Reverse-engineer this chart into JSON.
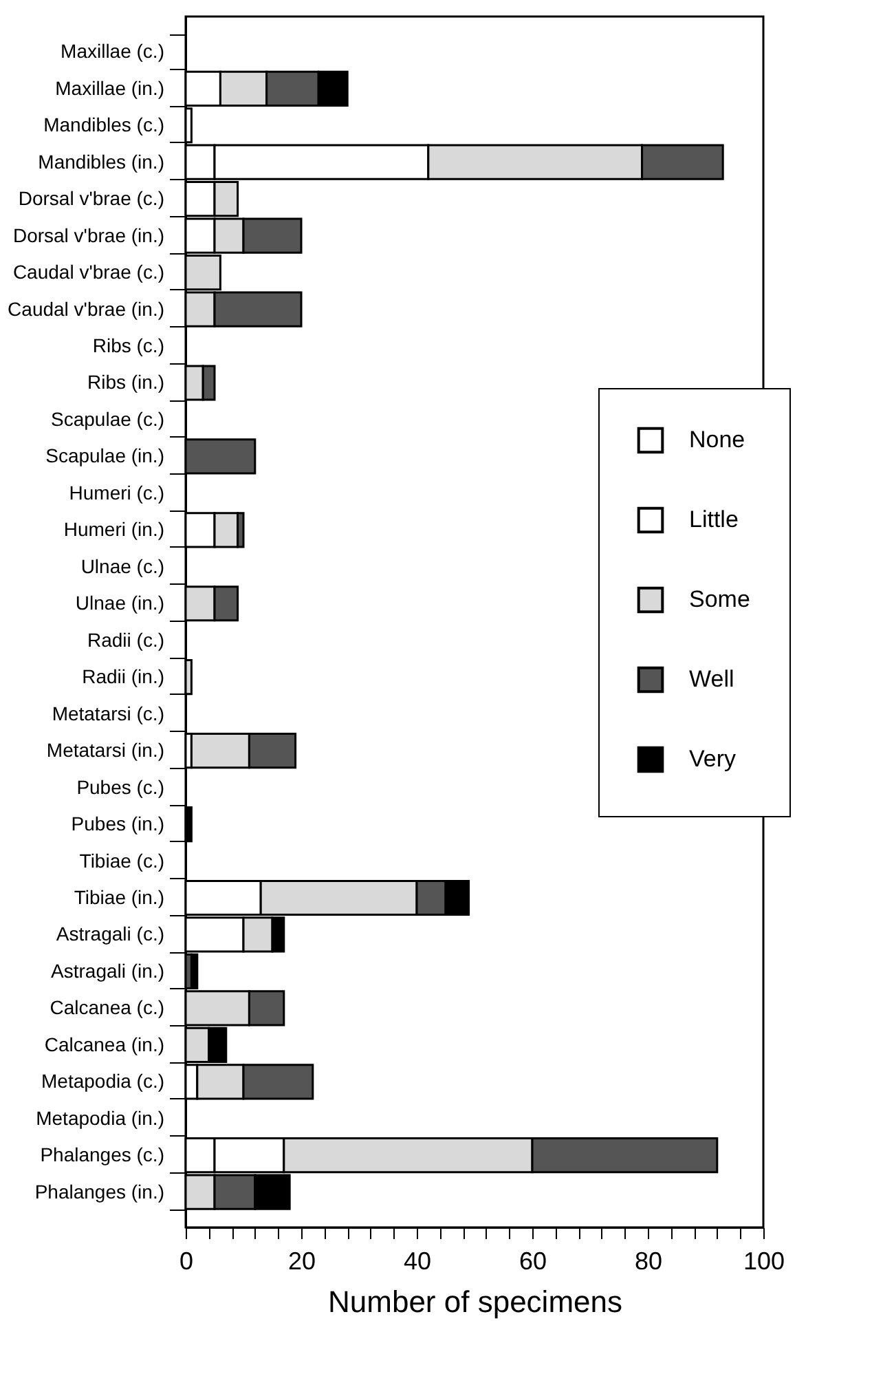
{
  "chart_data": {
    "type": "bar",
    "orientation": "horizontal",
    "stacked": true,
    "xlabel": "Number of specimens",
    "categories": [
      "Maxillae (c.)",
      "Maxillae (in.)",
      "Mandibles (c.)",
      "Mandibles (in.)",
      "Dorsal v'brae (c.)",
      "Dorsal v'brae (in.)",
      "Caudal v'brae (c.)",
      "Caudal v'brae (in.)",
      "Ribs (c.)",
      "Ribs (in.)",
      "Scapulae (c.)",
      "Scapulae (in.)",
      "Humeri (c.)",
      "Humeri (in.)",
      "Ulnae (c.)",
      "Ulnae (in.)",
      "Radii (c.)",
      "Radii (in.)",
      "Metatarsi (c.)",
      "Metatarsi (in.)",
      "Pubes (c.)",
      "Pubes (in.)",
      "Tibiae (c.)",
      "Tibiae (in.)",
      "Astragali (c.)",
      "Astragali (in.)",
      "Calcanea (c.)",
      "Calcanea (in.)",
      "Metapodia (c.)",
      "Metapodia (in.)",
      "Phalanges (c.)",
      "Phalanges (in.)"
    ],
    "series": [
      {
        "name": "None",
        "color": "#ffffff",
        "values": [
          null,
          6,
          1,
          5,
          5,
          5,
          null,
          null,
          null,
          null,
          null,
          null,
          null,
          5,
          null,
          null,
          null,
          null,
          null,
          1,
          null,
          null,
          null,
          13,
          10,
          null,
          null,
          null,
          2,
          null,
          5,
          null
        ]
      },
      {
        "name": "Little",
        "color": "#ffffff",
        "values": [
          null,
          null,
          null,
          37,
          null,
          null,
          null,
          null,
          null,
          null,
          null,
          null,
          null,
          null,
          null,
          null,
          null,
          null,
          null,
          null,
          null,
          null,
          null,
          null,
          null,
          null,
          null,
          null,
          null,
          null,
          12,
          null
        ]
      },
      {
        "name": "Some",
        "color": "#d9d9d9",
        "values": [
          null,
          8,
          null,
          37,
          4,
          5,
          6,
          5,
          null,
          3,
          null,
          null,
          null,
          4,
          null,
          5,
          null,
          1,
          null,
          10,
          null,
          null,
          null,
          27,
          5,
          null,
          11,
          4,
          8,
          null,
          43,
          5
        ]
      },
      {
        "name": "Well",
        "color": "#555555",
        "values": [
          null,
          9,
          null,
          14,
          null,
          10,
          null,
          15,
          null,
          2,
          null,
          12,
          null,
          1,
          null,
          4,
          null,
          null,
          null,
          8,
          null,
          null,
          null,
          5,
          null,
          1,
          6,
          null,
          12,
          null,
          32,
          7
        ]
      },
      {
        "name": "Very",
        "color": "#000000",
        "values": [
          null,
          5,
          null,
          null,
          null,
          null,
          null,
          null,
          null,
          null,
          null,
          null,
          null,
          null,
          null,
          null,
          null,
          null,
          null,
          null,
          null,
          1,
          null,
          4,
          2,
          1,
          null,
          3,
          null,
          null,
          null,
          6
        ]
      }
    ],
    "xlim": [
      0,
      100
    ],
    "xticks": [
      0,
      {
        "value": 4,
        "label": null
      },
      {
        "value": 8,
        "label": null
      },
      {
        "value": 12,
        "label": null
      },
      {
        "value": 16,
        "label": null
      },
      20,
      {
        "value": 24,
        "label": null
      },
      {
        "value": 28,
        "label": null
      },
      {
        "value": 32,
        "label": null
      },
      {
        "value": 36,
        "label": null
      },
      40,
      {
        "value": 44,
        "label": null
      },
      {
        "value": 48,
        "label": null
      },
      {
        "value": 52,
        "label": null
      },
      {
        "value": 56,
        "label": null
      },
      60,
      {
        "value": 64,
        "label": null
      },
      {
        "value": 68,
        "label": null
      },
      {
        "value": 72,
        "label": null
      },
      {
        "value": 76,
        "label": null
      },
      80,
      {
        "value": 84,
        "label": null
      },
      {
        "value": 88,
        "label": null
      },
      {
        "value": 92,
        "label": null
      },
      {
        "value": 96,
        "label": null
      },
      100
    ],
    "grid": false,
    "legend": "right"
  }
}
